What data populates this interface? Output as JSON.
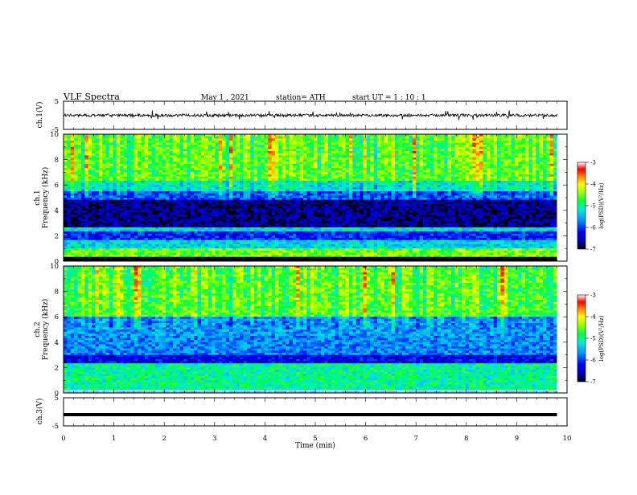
{
  "header": {
    "title": "VLF  Spectra",
    "date": "May 1  , 2021",
    "station": "station= ATH",
    "start": "start  UT  =    1  : 10 : 1"
  },
  "chart_data": [
    {
      "type": "line",
      "panel": "ch1-waveform",
      "ylabel": "ch.1(V)",
      "ylim": [
        -5,
        5
      ],
      "yticks": [
        "5",
        "-5"
      ],
      "xlim": [
        0,
        10
      ],
      "trace": "black waveform centred near 0 V with spikes of roughly ±1.5 V",
      "data_extent_min": 9.8
    },
    {
      "type": "heatmap",
      "panel": "ch1-spectrogram",
      "ylabel": "ch.1\nFrequency  (kHz)",
      "ylim": [
        0,
        10
      ],
      "yticks": [
        "0",
        "2",
        "4",
        "6",
        "8",
        "10"
      ],
      "xlim": [
        0,
        10
      ],
      "colorbar": {
        "label": "log(PSD)(V²/Hz)",
        "range": [
          -7,
          -3
        ],
        "ticks": [
          "-3",
          "-4",
          "-5",
          "-6",
          "-7"
        ]
      },
      "bands": [
        {
          "from_khz": 0.0,
          "to_khz": 0.3,
          "level": -7.0
        },
        {
          "from_khz": 0.3,
          "to_khz": 1.0,
          "level": -4.5
        },
        {
          "from_khz": 1.0,
          "to_khz": 1.7,
          "level": -5.3
        },
        {
          "from_khz": 1.7,
          "to_khz": 2.3,
          "level": -6.1
        },
        {
          "from_khz": 2.3,
          "to_khz": 2.6,
          "level": -5.2
        },
        {
          "from_khz": 2.6,
          "to_khz": 4.8,
          "level": -6.7
        },
        {
          "from_khz": 4.8,
          "to_khz": 5.5,
          "level": -5.9
        },
        {
          "from_khz": 5.5,
          "to_khz": 6.3,
          "level": -5.2
        },
        {
          "from_khz": 6.3,
          "to_khz": 10.0,
          "level": -4.6
        }
      ]
    },
    {
      "type": "heatmap",
      "panel": "ch2-spectrogram",
      "ylabel": "ch.2\nFrequency  (kHz)",
      "ylim": [
        0,
        10
      ],
      "yticks": [
        "0",
        "2",
        "4",
        "6",
        "8",
        "10"
      ],
      "xlim": [
        0,
        10
      ],
      "colorbar": {
        "label": "log(PSD)(V²/Hz)",
        "range": [
          -7,
          -3
        ],
        "ticks": [
          "-3",
          "-4",
          "-5",
          "-6",
          "-7"
        ]
      },
      "bands": [
        {
          "from_khz": 0.0,
          "to_khz": 0.2,
          "level": -6.0
        },
        {
          "from_khz": 0.2,
          "to_khz": 1.0,
          "level": -5.0
        },
        {
          "from_khz": 1.0,
          "to_khz": 2.4,
          "level": -5.0
        },
        {
          "from_khz": 2.4,
          "to_khz": 3.0,
          "level": -6.3
        },
        {
          "from_khz": 3.0,
          "to_khz": 4.5,
          "level": -5.7
        },
        {
          "from_khz": 4.5,
          "to_khz": 6.0,
          "level": -5.6
        },
        {
          "from_khz": 6.0,
          "to_khz": 10.0,
          "level": -4.6
        }
      ]
    },
    {
      "type": "line",
      "panel": "ch3-waveform",
      "ylabel": "ch.3(V)",
      "ylim": [
        -5,
        5
      ],
      "yticks": [
        "5",
        "-5"
      ],
      "xlim": [
        0,
        10
      ],
      "xlabel": "Time  (min)",
      "xticks": [
        "0",
        "1",
        "2",
        "3",
        "4",
        "5",
        "6",
        "7",
        "8",
        "9",
        "10"
      ],
      "trace": "thick flat black line at about -1 V",
      "level_v": -1,
      "data_extent_min": 9.8
    }
  ]
}
